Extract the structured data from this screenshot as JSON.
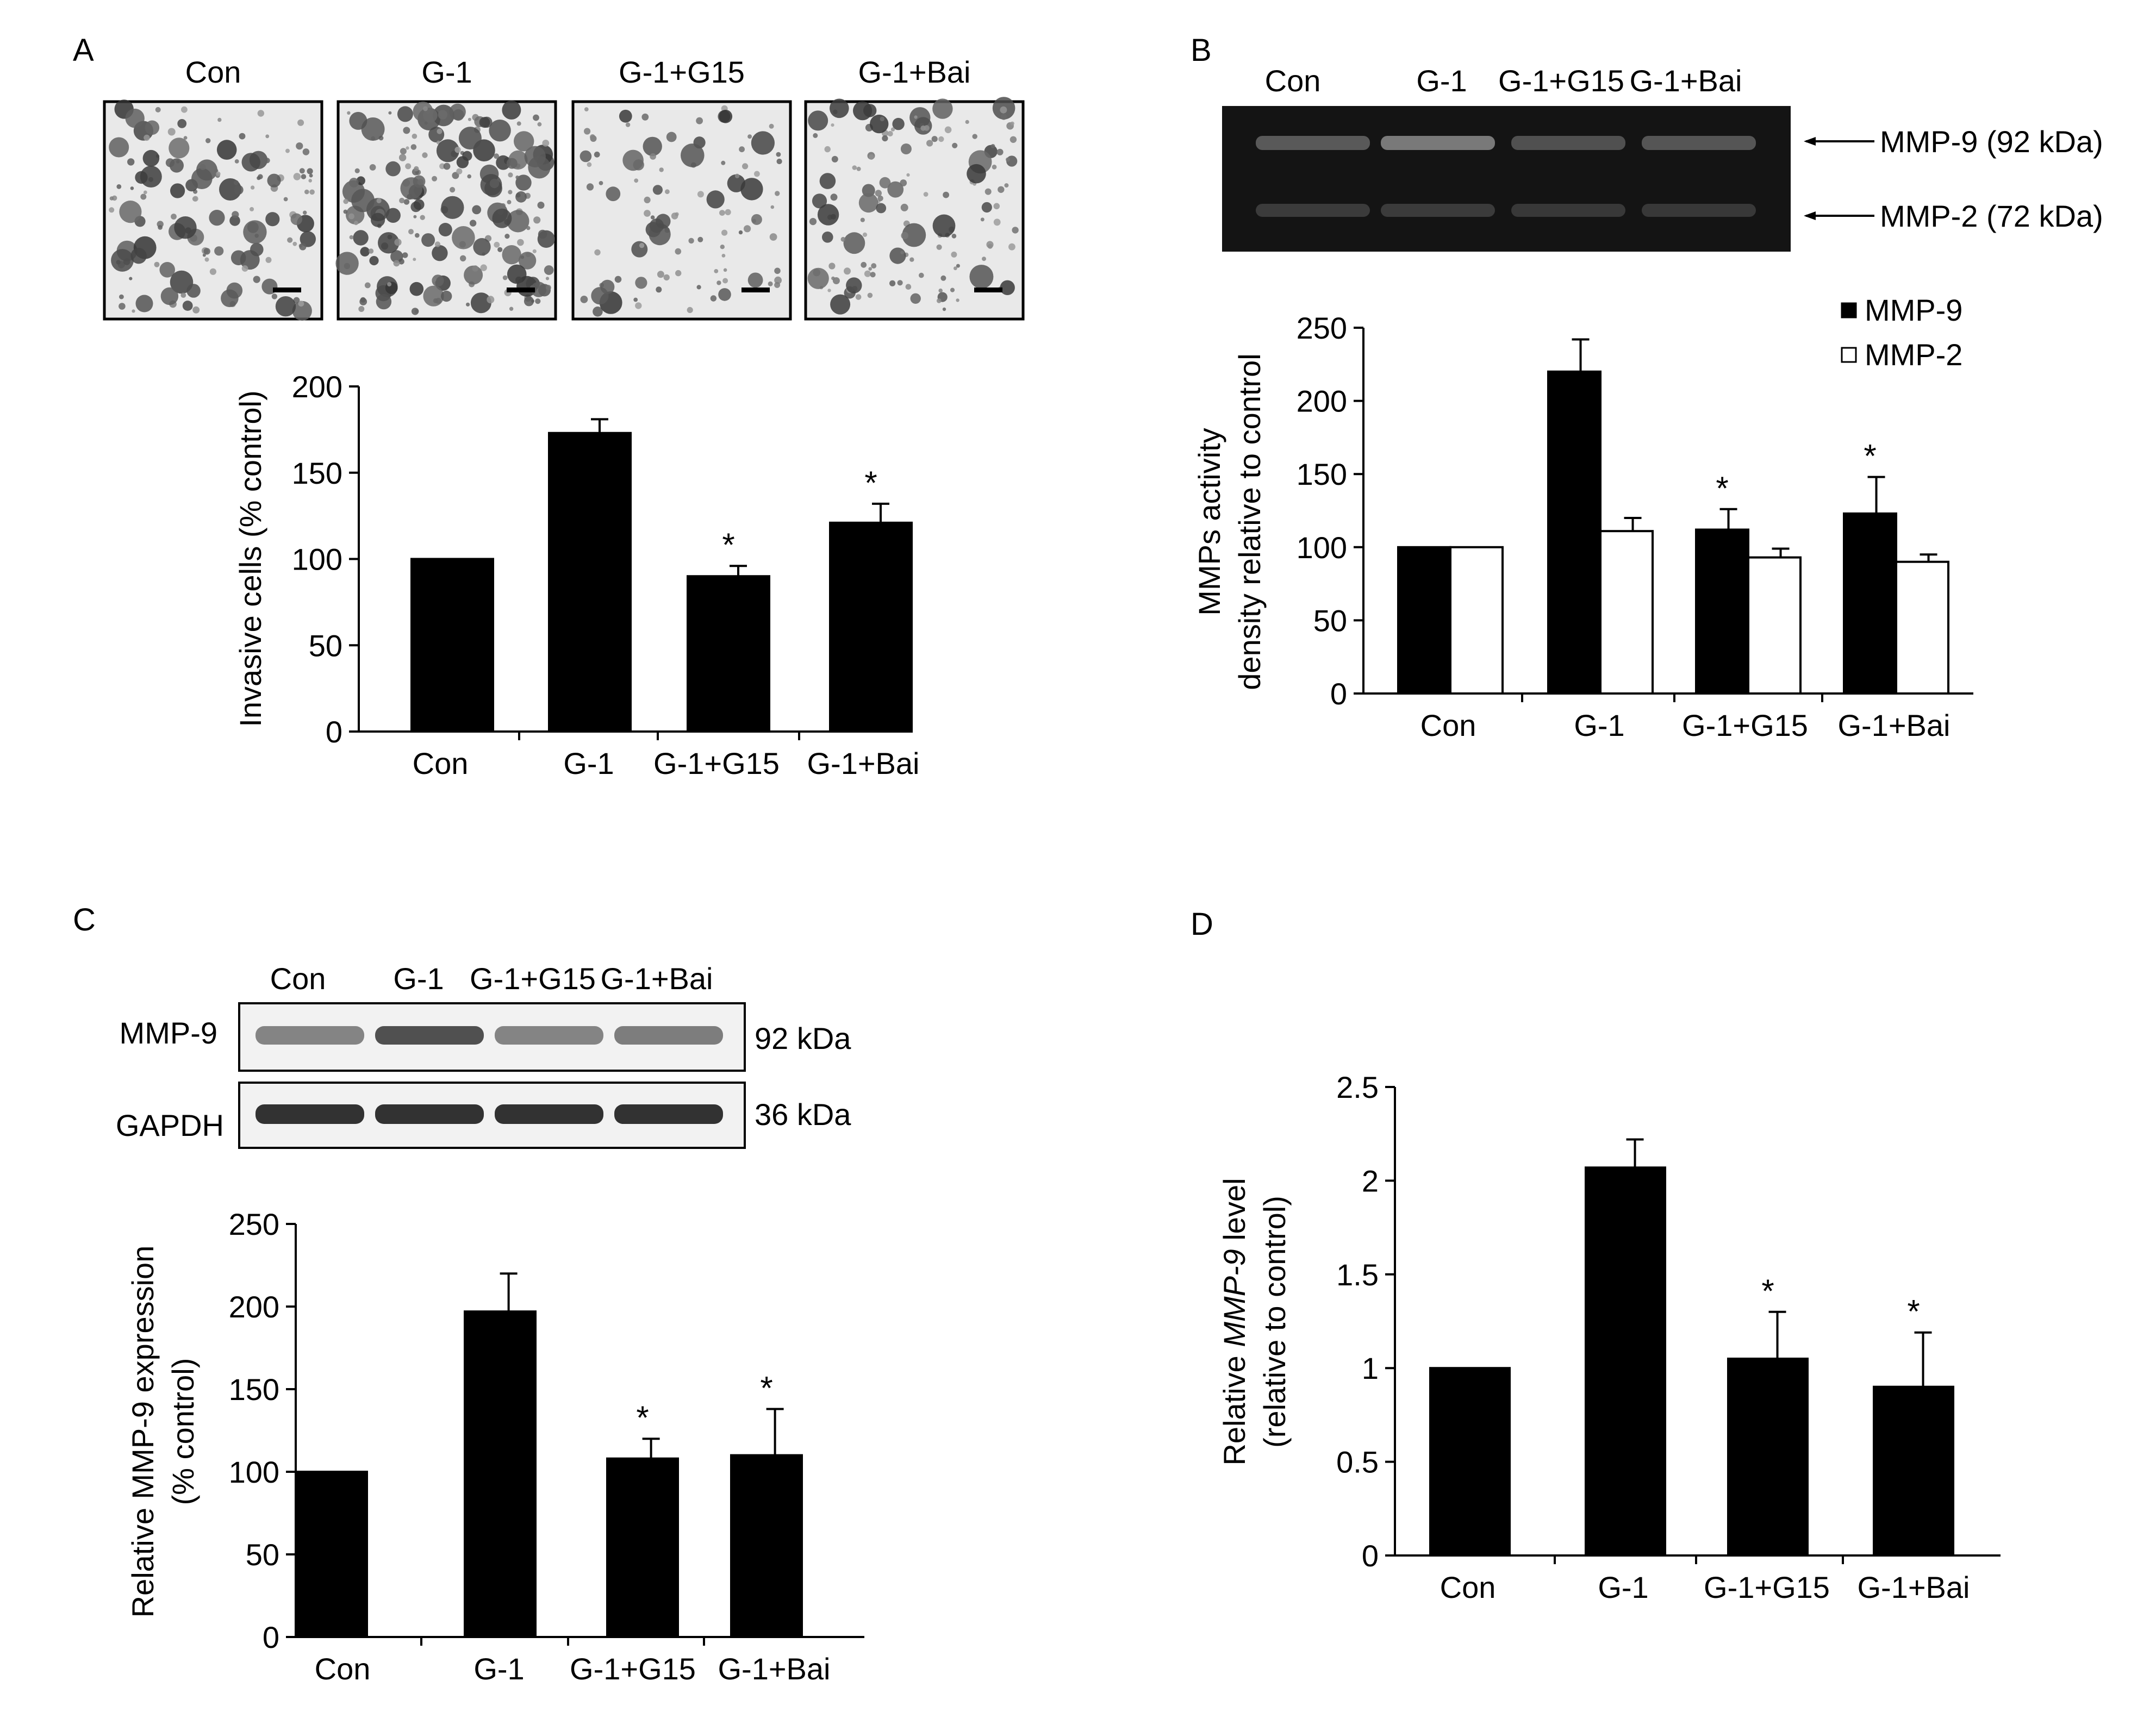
{
  "panel_letters": {
    "a": "A",
    "b": "B",
    "c": "C",
    "d": "D"
  },
  "colors": {
    "bar_fill": "#000000",
    "bar_fill_open": "#ffffff",
    "blot_bg": "#141414",
    "band": "#3a3a3a"
  },
  "panel_a": {
    "micrograph_labels": [
      "Con",
      "G-1",
      "G-1+G15",
      "G-1+Bai"
    ]
  },
  "panel_b": {
    "gel_lane_labels": [
      "Con",
      "G-1",
      "G-1+G15",
      "G-1+Bai"
    ],
    "band_labels": [
      "MMP-9 (92 kDa)",
      "MMP-2 (72 kDa)"
    ]
  },
  "panel_c": {
    "blot_lane_labels": [
      "Con",
      "G-1",
      "G-1+G15",
      "G-1+Bai"
    ],
    "blot_row_labels": [
      "MMP-9",
      "GAPDH"
    ],
    "blot_size_labels": [
      "92 kDa",
      "36 kDa"
    ]
  },
  "chart_data": [
    {
      "id": "A",
      "type": "bar",
      "categories": [
        "Con",
        "G-1",
        "G-1+G15",
        "G-1+Bai"
      ],
      "series": [
        {
          "values": [
            100,
            173,
            90,
            121
          ],
          "errors": [
            0,
            8,
            6,
            11
          ]
        }
      ],
      "significance": [
        "",
        "",
        "*",
        "*"
      ],
      "ylabel": "Invasive cells (% control)",
      "ylim": [
        0,
        200
      ],
      "yticks": [
        0,
        50,
        100,
        150,
        200
      ],
      "grid": false
    },
    {
      "id": "B",
      "type": "bar",
      "categories": [
        "Con",
        "G-1",
        "G-1+G15",
        "G-1+Bai"
      ],
      "series": [
        {
          "name": "MMP-9",
          "values": [
            100,
            220,
            112,
            123
          ],
          "errors": [
            0,
            22,
            14,
            25
          ]
        },
        {
          "name": "MMP-2",
          "values": [
            100,
            111,
            93,
            90
          ],
          "errors": [
            0,
            9,
            6,
            5
          ]
        }
      ],
      "significance": [
        "",
        "",
        "*",
        "*"
      ],
      "ylabel_lines": [
        "MMPs activity",
        "density relative to control"
      ],
      "ylim": [
        0,
        250
      ],
      "yticks": [
        0,
        50,
        100,
        150,
        200,
        250
      ],
      "legend": "top-right",
      "grid": false
    },
    {
      "id": "C",
      "type": "bar",
      "categories": [
        "Con",
        "G-1",
        "G-1+G15",
        "G-1+Bai"
      ],
      "series": [
        {
          "values": [
            100,
            197,
            108,
            110
          ],
          "errors": [
            0,
            23,
            12,
            28
          ]
        }
      ],
      "significance": [
        "",
        "",
        "*",
        "*"
      ],
      "ylabel_lines": [
        "Relative MMP-9 expression",
        "(% control)"
      ],
      "ylim": [
        0,
        250
      ],
      "yticks": [
        0,
        50,
        100,
        150,
        200,
        250
      ],
      "grid": false
    },
    {
      "id": "D",
      "type": "bar",
      "categories": [
        "Con",
        "G-1",
        "G-1+G15",
        "G-1+Bai"
      ],
      "series": [
        {
          "values": [
            1.0,
            2.07,
            1.05,
            0.9
          ],
          "errors": [
            0,
            0.15,
            0.25,
            0.29
          ]
        }
      ],
      "significance": [
        "",
        "",
        "*",
        "*"
      ],
      "ylabel_parts": [
        "Relative ",
        "MMP-9",
        " level"
      ],
      "ylabel_line2": "(relative to control)",
      "ylim": [
        0,
        2.5
      ],
      "yticks": [
        "0",
        "0.5",
        "1",
        "1.5",
        "2",
        "2.5"
      ],
      "grid": false
    }
  ]
}
